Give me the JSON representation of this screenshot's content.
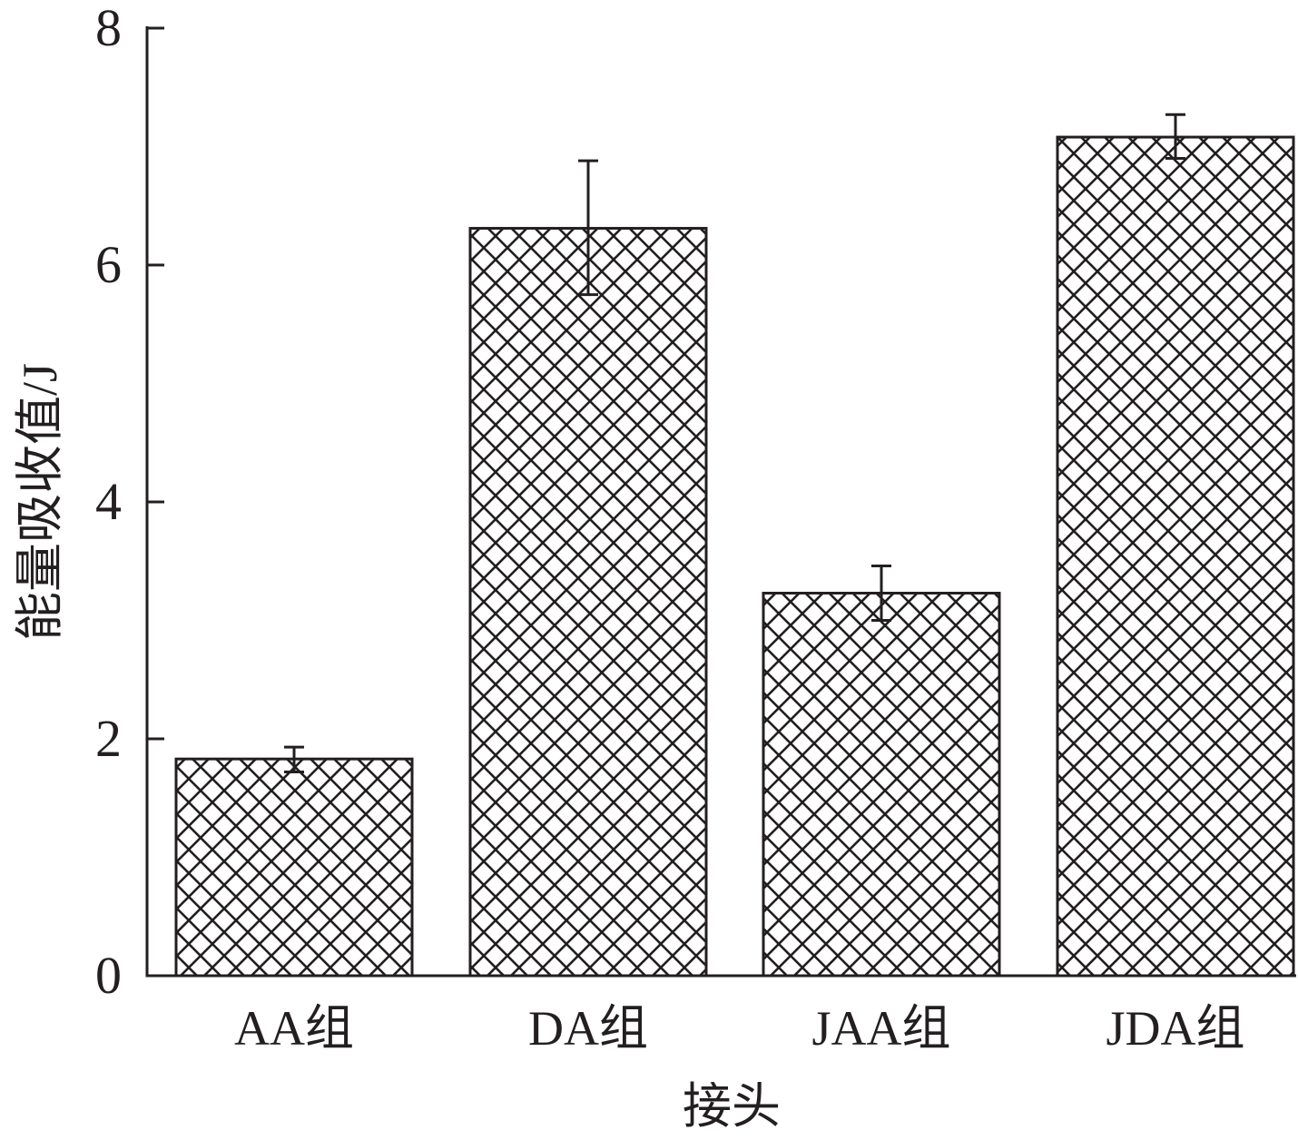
{
  "chart_data": {
    "type": "bar",
    "title": "",
    "xlabel": "接头",
    "ylabel": "能量吸收值/J",
    "categories": [
      "AA组",
      "DA组",
      "JAA组",
      "JDA组"
    ],
    "values": [
      1.83,
      6.31,
      3.23,
      7.08
    ],
    "error_low": [
      1.72,
      5.75,
      3.0,
      6.9
    ],
    "error_high": [
      1.93,
      6.88,
      3.46,
      7.27
    ],
    "ylim": [
      0,
      8
    ],
    "yticks": [
      0,
      2,
      4,
      6,
      8
    ],
    "ytick_labels": [
      "0",
      "2",
      "4",
      "6",
      "8"
    ],
    "bar_pattern": "crosshatch",
    "bar_fill": "#ffffff",
    "stroke_color": "#231f20",
    "grid": false,
    "legend": "none"
  }
}
